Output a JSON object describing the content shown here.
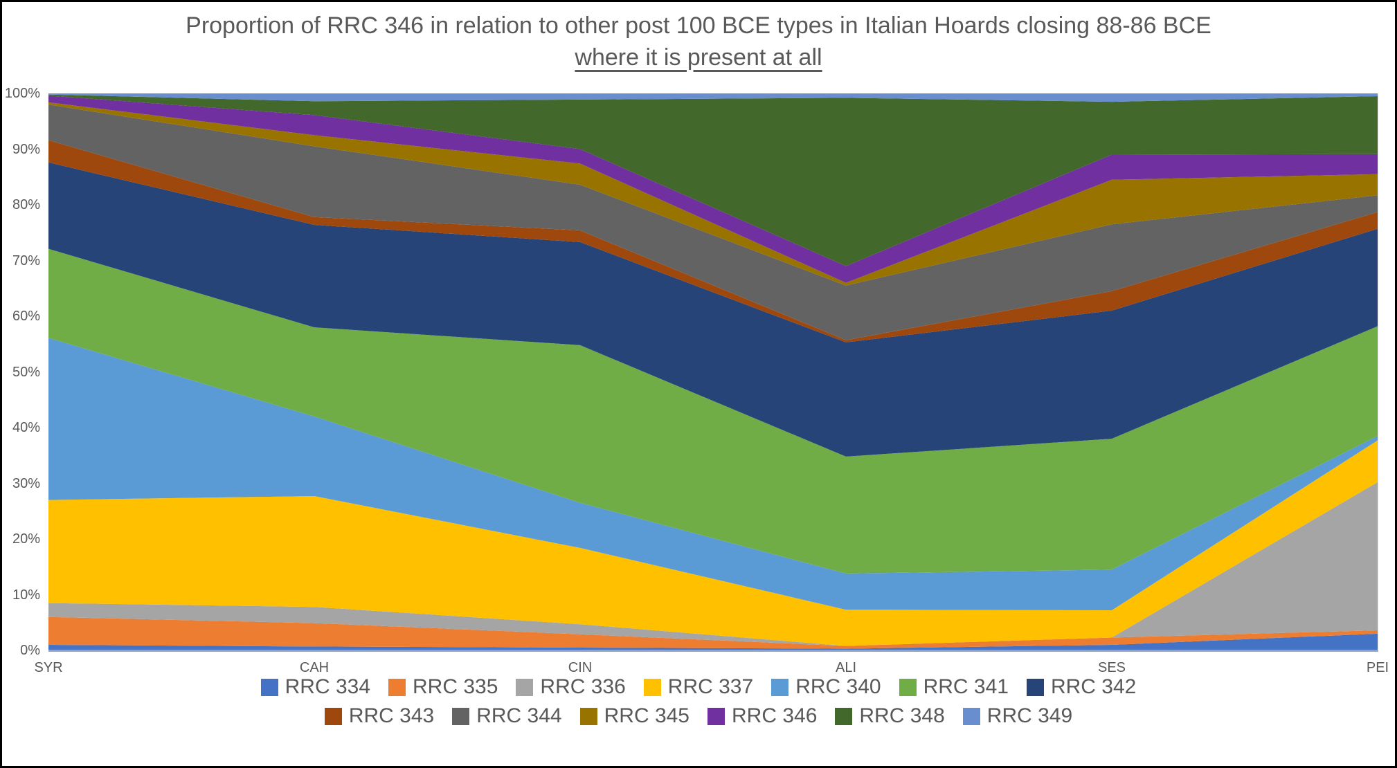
{
  "title": {
    "line1": "Proportion of RRC 346 in relation to other post 100 BCE types in Italian Hoards closing 88-86 BCE",
    "line2": "where it is present at all"
  },
  "y_axis": {
    "tick_labels": [
      "100%",
      "90%",
      "80%",
      "70%",
      "60%",
      "50%",
      "40%",
      "30%",
      "20%",
      "10%",
      "0%"
    ]
  },
  "x_axis": {
    "labels": [
      "SYR",
      "CAH",
      "CIN",
      "ALI",
      "SES",
      "PEI"
    ]
  },
  "chart_data": {
    "type": "area",
    "stacked": true,
    "percent_stacked": true,
    "title": "Proportion of RRC 346 in relation to other post 100 BCE types in Italian Hoards closing 88-86 BCE where it is present at all",
    "xlabel": "",
    "ylabel": "",
    "ylim": [
      0,
      100
    ],
    "grid": false,
    "legend_position": "bottom",
    "categories": [
      "SYR",
      "CAH",
      "CIN",
      "ALI",
      "SES",
      "PEI"
    ],
    "series": [
      {
        "name": "RRC 334",
        "color": "#4472C4",
        "values": [
          1.0,
          0.7,
          0.5,
          0.3,
          1.0,
          3.0
        ]
      },
      {
        "name": "RRC 335",
        "color": "#ED7D31",
        "values": [
          5.0,
          4.2,
          2.4,
          0.5,
          1.3,
          0.6
        ]
      },
      {
        "name": "RRC 336",
        "color": "#A5A5A5",
        "values": [
          2.5,
          2.9,
          1.8,
          0.0,
          0.0,
          26.6
        ]
      },
      {
        "name": "RRC 337",
        "color": "#FFC000",
        "values": [
          18.5,
          19.9,
          13.7,
          6.5,
          4.9,
          7.5
        ]
      },
      {
        "name": "RRC 340",
        "color": "#5B9BD5",
        "values": [
          29.1,
          14.3,
          8.1,
          6.5,
          7.3,
          0.8
        ]
      },
      {
        "name": "RRC 341",
        "color": "#70AD47",
        "values": [
          16.0,
          16.0,
          28.3,
          21.0,
          23.5,
          19.7
        ]
      },
      {
        "name": "RRC 342",
        "color": "#264478",
        "values": [
          15.5,
          18.4,
          18.5,
          20.5,
          23.0,
          17.5
        ]
      },
      {
        "name": "RRC 343",
        "color": "#9E480E",
        "values": [
          4.0,
          1.4,
          2.1,
          0.4,
          3.5,
          3.0
        ]
      },
      {
        "name": "RRC 344",
        "color": "#636363",
        "values": [
          6.4,
          12.7,
          8.2,
          9.8,
          12.0,
          3.0
        ]
      },
      {
        "name": "RRC 345",
        "color": "#997300",
        "values": [
          0.4,
          2.0,
          3.8,
          0.5,
          8.0,
          3.8
        ]
      },
      {
        "name": "RRC 346",
        "color": "#7030A0",
        "values": [
          1.2,
          3.6,
          2.6,
          3.0,
          4.5,
          3.6
        ]
      },
      {
        "name": "RRC 348",
        "color": "#43682B",
        "values": [
          0.2,
          2.5,
          8.9,
          30.2,
          9.5,
          10.4
        ]
      },
      {
        "name": "RRC 349",
        "color": "#698ED0",
        "values": [
          0.2,
          1.4,
          1.1,
          0.8,
          1.5,
          0.5
        ]
      }
    ],
    "legend_rows": [
      7,
      6
    ]
  }
}
